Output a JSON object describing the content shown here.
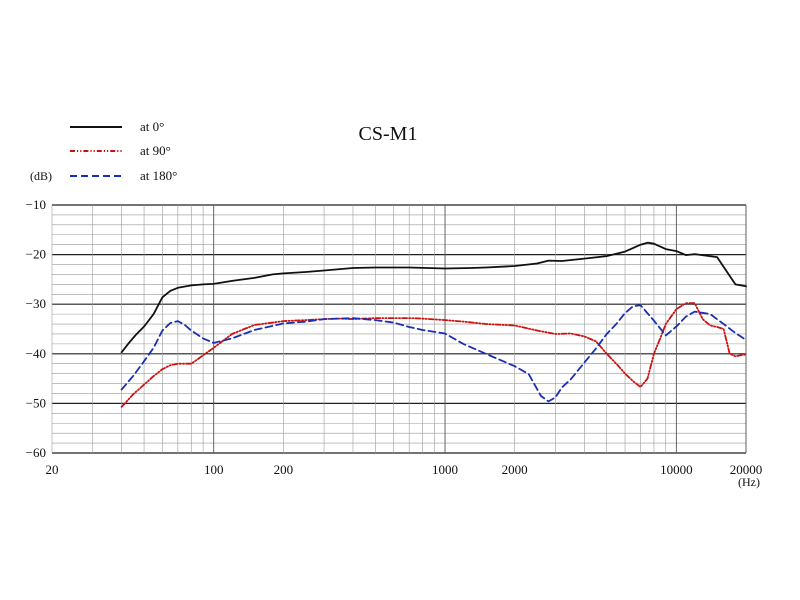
{
  "chart_data": {
    "type": "line",
    "title": "CS-M1",
    "ylabel": "(dB)",
    "xlabel": "(Hz)",
    "x_scale": "log",
    "xlim": [
      20,
      20000
    ],
    "ylim": [
      -60,
      -10
    ],
    "x_tick_labels": [
      {
        "value": 20,
        "label": "20"
      },
      {
        "value": 100,
        "label": "100"
      },
      {
        "value": 200,
        "label": "200"
      },
      {
        "value": 1000,
        "label": "1000"
      },
      {
        "value": 2000,
        "label": "2000"
      },
      {
        "value": 10000,
        "label": "10000"
      },
      {
        "value": 20000,
        "label": "20000"
      }
    ],
    "y_ticks": [
      -10,
      -20,
      -30,
      -40,
      -50,
      -60
    ],
    "y_tick_labels": [
      "−10",
      "−20",
      "−30",
      "−40",
      "−50",
      "−60"
    ],
    "grid": true,
    "legend_position": "top-left",
    "series": [
      {
        "name": "at 0°",
        "color": "#111111",
        "style": "solid",
        "x": [
          40,
          43,
          46,
          50,
          55,
          60,
          65,
          70,
          80,
          90,
          100,
          120,
          150,
          180,
          200,
          250,
          300,
          400,
          500,
          700,
          1000,
          1300,
          1500,
          2000,
          2500,
          2800,
          3200,
          4000,
          5000,
          6000,
          7000,
          7500,
          8000,
          9000,
          10000,
          11000,
          12000,
          15000,
          18000,
          20000
        ],
        "y": [
          -39.7,
          -37.8,
          -36.2,
          -34.5,
          -32.0,
          -28.6,
          -27.3,
          -26.7,
          -26.2,
          -26.0,
          -25.9,
          -25.3,
          -24.7,
          -24.0,
          -23.8,
          -23.5,
          -23.2,
          -22.7,
          -22.6,
          -22.6,
          -22.8,
          -22.7,
          -22.6,
          -22.3,
          -21.8,
          -21.2,
          -21.3,
          -20.8,
          -20.3,
          -19.4,
          -18.0,
          -17.6,
          -17.8,
          -18.9,
          -19.3,
          -20.1,
          -19.9,
          -20.5,
          -26.0,
          -26.4
        ]
      },
      {
        "name": "at 90°",
        "color": "#cc1111",
        "style": "dash-dot-dot",
        "x": [
          40,
          45,
          50,
          55,
          60,
          65,
          70,
          75,
          80,
          90,
          100,
          120,
          150,
          200,
          250,
          300,
          350,
          400,
          500,
          600,
          700,
          800,
          1000,
          1200,
          1500,
          2000,
          2500,
          3000,
          3500,
          4000,
          4500,
          5000,
          5500,
          6000,
          6500,
          7000,
          7500,
          8000,
          8500,
          9000,
          10000,
          11000,
          12000,
          13000,
          14000,
          15000,
          16000,
          17000,
          18000,
          20000
        ],
        "y": [
          -50.7,
          -48.1,
          -46.2,
          -44.5,
          -43.1,
          -42.3,
          -42.0,
          -42.0,
          -42.0,
          -40.3,
          -38.8,
          -36.0,
          -34.2,
          -33.4,
          -33.2,
          -33.0,
          -32.9,
          -33.0,
          -32.8,
          -32.8,
          -32.8,
          -32.9,
          -33.2,
          -33.5,
          -34.0,
          -34.3,
          -35.3,
          -36.0,
          -35.9,
          -36.5,
          -37.5,
          -40.0,
          -42.0,
          -44.0,
          -45.5,
          -46.7,
          -45.0,
          -40.0,
          -37.0,
          -34.0,
          -31.0,
          -29.8,
          -29.8,
          -33.0,
          -34.3,
          -34.6,
          -35.0,
          -40.0,
          -40.5,
          -40.1
        ]
      },
      {
        "name": "at 180°",
        "color": "#1a2fb3",
        "style": "dashed",
        "x": [
          40,
          45,
          50,
          55,
          60,
          65,
          70,
          75,
          80,
          90,
          100,
          120,
          150,
          200,
          250,
          300,
          400,
          500,
          600,
          700,
          800,
          1000,
          1200,
          1500,
          2000,
          2300,
          2600,
          2800,
          3000,
          3200,
          3500,
          4000,
          4500,
          5000,
          5500,
          6000,
          6500,
          7000,
          8000,
          9000,
          10000,
          11000,
          12000,
          14000,
          16000,
          18000,
          20000
        ],
        "y": [
          -47.2,
          -44.4,
          -41.5,
          -38.8,
          -35.3,
          -33.8,
          -33.4,
          -34.2,
          -35.3,
          -36.9,
          -37.8,
          -36.9,
          -35.2,
          -33.9,
          -33.5,
          -33.0,
          -32.8,
          -33.2,
          -33.7,
          -34.6,
          -35.2,
          -35.9,
          -38.0,
          -40.0,
          -42.5,
          -44.1,
          -48.5,
          -49.6,
          -48.8,
          -46.8,
          -45.1,
          -41.8,
          -38.9,
          -36.0,
          -34.0,
          -31.8,
          -30.4,
          -30.2,
          -33.3,
          -36.3,
          -34.5,
          -32.5,
          -31.5,
          -32.0,
          -34.0,
          -35.8,
          -37.2
        ]
      }
    ]
  }
}
